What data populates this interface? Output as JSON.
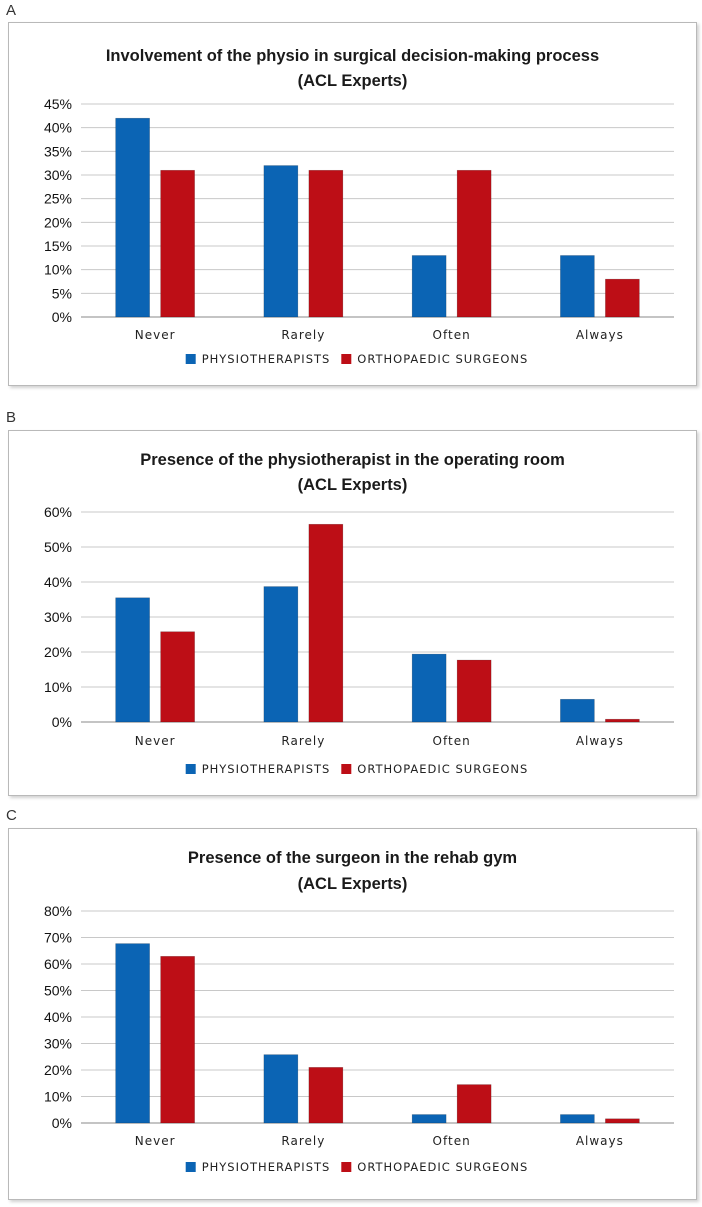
{
  "colors": {
    "physio": "#0b64b4",
    "surgeon": "#bd0e16"
  },
  "chart_data": [
    {
      "panel": "A",
      "type": "bar",
      "title": "Involvement of the physio in surgical decision-making process",
      "subtitle": "(ACL Experts)",
      "categories": [
        "Never",
        "Rarely",
        "Often",
        "Always"
      ],
      "series": [
        {
          "name": "PHYSIOTHERAPISTS",
          "values": [
            42,
            32,
            13,
            13
          ]
        },
        {
          "name": "ORTHOPAEDIC SURGEONS",
          "values": [
            31,
            31,
            31,
            8
          ]
        }
      ],
      "yticks": [
        "0%",
        "5%",
        "10%",
        "15%",
        "20%",
        "25%",
        "30%",
        "35%",
        "40%",
        "45%"
      ],
      "ylim": [
        0,
        45
      ],
      "ystep": 5,
      "grid": true,
      "legend": "bottom-center",
      "xlabel": "",
      "ylabel": ""
    },
    {
      "panel": "B",
      "type": "bar",
      "title": "Presence of the physiotherapist in the operating room",
      "subtitle": "(ACL Experts)",
      "categories": [
        "Never",
        "Rarely",
        "Often",
        "Always"
      ],
      "series": [
        {
          "name": "PHYSIOTHERAPISTS",
          "values": [
            35.5,
            38.7,
            19.4,
            6.5
          ]
        },
        {
          "name": "ORTHOPAEDIC SURGEONS",
          "values": [
            25.8,
            56.5,
            17.7,
            0.8
          ]
        }
      ],
      "yticks": [
        "0%",
        "10%",
        "20%",
        "30%",
        "40%",
        "50%",
        "60%"
      ],
      "ylim": [
        0,
        60
      ],
      "ystep": 10,
      "grid": true,
      "legend": "bottom-center",
      "xlabel": "",
      "ylabel": ""
    },
    {
      "panel": "C",
      "type": "bar",
      "title": "Presence of the surgeon in the rehab gym",
      "subtitle": "(ACL Experts)",
      "categories": [
        "Never",
        "Rarely",
        "Often",
        "Always"
      ],
      "series": [
        {
          "name": "PHYSIOTHERAPISTS",
          "values": [
            67.7,
            25.8,
            3.2,
            3.2
          ]
        },
        {
          "name": "ORTHOPAEDIC SURGEONS",
          "values": [
            62.9,
            21,
            14.5,
            1.6
          ]
        }
      ],
      "yticks": [
        "0%",
        "10%",
        "20%",
        "30%",
        "40%",
        "50%",
        "60%",
        "70%",
        "80%"
      ],
      "ylim": [
        0,
        80
      ],
      "ystep": 10,
      "grid": true,
      "legend": "bottom-center",
      "xlabel": "",
      "ylabel": ""
    }
  ]
}
